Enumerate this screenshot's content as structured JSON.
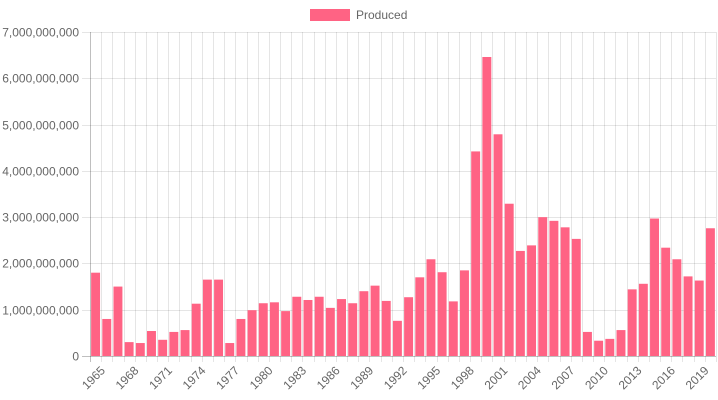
{
  "chart_data": {
    "type": "bar",
    "title": "",
    "xlabel": "",
    "ylabel": "",
    "ylim": [
      0,
      7000000000
    ],
    "y_ticks": [
      "0",
      "1,000,000,000",
      "2,000,000,000",
      "3,000,000,000",
      "4,000,000,000",
      "5,000,000,000",
      "6,000,000,000",
      "7,000,000,000"
    ],
    "x_tick_labels": [
      "1965",
      "1968",
      "1971",
      "1974",
      "1977",
      "1980",
      "1983",
      "1986",
      "1989",
      "1992",
      "1995",
      "1998",
      "2001",
      "2004",
      "2007",
      "2010",
      "2013",
      "2016",
      "2019"
    ],
    "grid": true,
    "legend": {
      "position": "top",
      "label": "Produced",
      "color": "#ff6384"
    },
    "categories": [
      "1965",
      "1966",
      "1967",
      "1968",
      "1969",
      "1970",
      "1971",
      "1972",
      "1973",
      "1974",
      "1975",
      "1976",
      "1977",
      "1978",
      "1979",
      "1980",
      "1981",
      "1982",
      "1983",
      "1984",
      "1985",
      "1986",
      "1987",
      "1988",
      "1989",
      "1990",
      "1991",
      "1992",
      "1993",
      "1994",
      "1995",
      "1996",
      "1997",
      "1998",
      "1999",
      "2000",
      "2001",
      "2002",
      "2003",
      "2004",
      "2005",
      "2006",
      "2007",
      "2008",
      "2009",
      "2010",
      "2011",
      "2012",
      "2013",
      "2014",
      "2015",
      "2016",
      "2017",
      "2018",
      "2019",
      "2020"
    ],
    "series": [
      {
        "name": "Produced",
        "color": "#ff6384",
        "values": [
          1800000000,
          800000000,
          1500000000,
          300000000,
          280000000,
          540000000,
          350000000,
          520000000,
          560000000,
          1130000000,
          1650000000,
          1650000000,
          280000000,
          800000000,
          990000000,
          1140000000,
          1160000000,
          970000000,
          1280000000,
          1210000000,
          1280000000,
          1040000000,
          1230000000,
          1140000000,
          1400000000,
          1520000000,
          1190000000,
          760000000,
          1270000000,
          1700000000,
          2090000000,
          1810000000,
          1180000000,
          1850000000,
          4420000000,
          6460000000,
          4790000000,
          3290000000,
          2270000000,
          2390000000,
          3000000000,
          2920000000,
          2780000000,
          2530000000,
          520000000,
          330000000,
          370000000,
          560000000,
          1440000000,
          1560000000,
          2970000000,
          2340000000,
          2090000000,
          1720000000,
          1630000000,
          2760000000
        ]
      }
    ]
  }
}
